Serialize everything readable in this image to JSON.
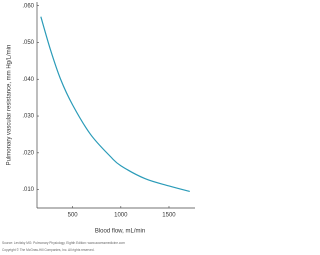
{
  "chart_data": {
    "type": "line",
    "ylabel": "Pulmonary vascular resistance, mm Hg/L/min",
    "xlabel": "Blood flow, mL/min",
    "source": "Source: Levitzky MG: Pulmonary Physiology, Eighth Edition: www.accessmedicine.com",
    "copyright": "Copyright © The McGraw-Hill Companies, Inc. All rights reserved.",
    "x": [
      170,
      270,
      375,
      500,
      686,
      892,
      1000,
      1250,
      1500,
      1716
    ],
    "series": [
      {
        "name": "Pulmonary vascular resistance",
        "color": "#2a9bb8",
        "values": [
          0.057,
          0.048,
          0.04,
          0.033,
          0.025,
          0.019,
          0.0165,
          0.013,
          0.011,
          0.0095
        ]
      }
    ],
    "xlim": [
      130,
      1770
    ],
    "ylim": [
      0.005,
      0.061
    ],
    "xticks": [
      500,
      1000,
      1500
    ],
    "yticks": [
      {
        "value": 0.06,
        "label": ".060"
      },
      {
        "value": 0.05,
        "label": ".050"
      },
      {
        "value": 0.04,
        "label": ".040"
      },
      {
        "value": 0.03,
        "label": ".030"
      },
      {
        "value": 0.02,
        "label": ".020"
      },
      {
        "value": 0.01,
        "label": ".010"
      }
    ]
  }
}
